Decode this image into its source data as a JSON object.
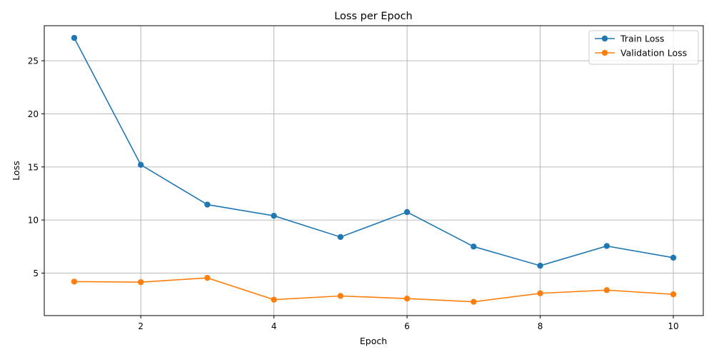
{
  "chart_data": {
    "type": "line",
    "title": "Loss per Epoch",
    "xlabel": "Epoch",
    "ylabel": "Loss",
    "x": [
      1,
      2,
      3,
      4,
      5,
      6,
      7,
      8,
      9,
      10
    ],
    "xlim": [
      0.55,
      10.45
    ],
    "ylim": [
      1.0,
      28.3
    ],
    "xticks": [
      2,
      4,
      6,
      8,
      10
    ],
    "yticks": [
      5,
      10,
      15,
      20,
      25
    ],
    "grid": true,
    "legend_position": "top-right",
    "series": [
      {
        "name": "Train Loss",
        "color": "#1f77b4",
        "values": [
          27.15,
          15.2,
          11.45,
          10.4,
          8.4,
          10.75,
          7.5,
          5.7,
          7.55,
          6.45
        ]
      },
      {
        "name": "Validation Loss",
        "color": "#ff7f0e",
        "values": [
          4.2,
          4.15,
          4.55,
          2.5,
          2.85,
          2.6,
          2.3,
          3.1,
          3.4,
          3.0
        ]
      }
    ]
  }
}
